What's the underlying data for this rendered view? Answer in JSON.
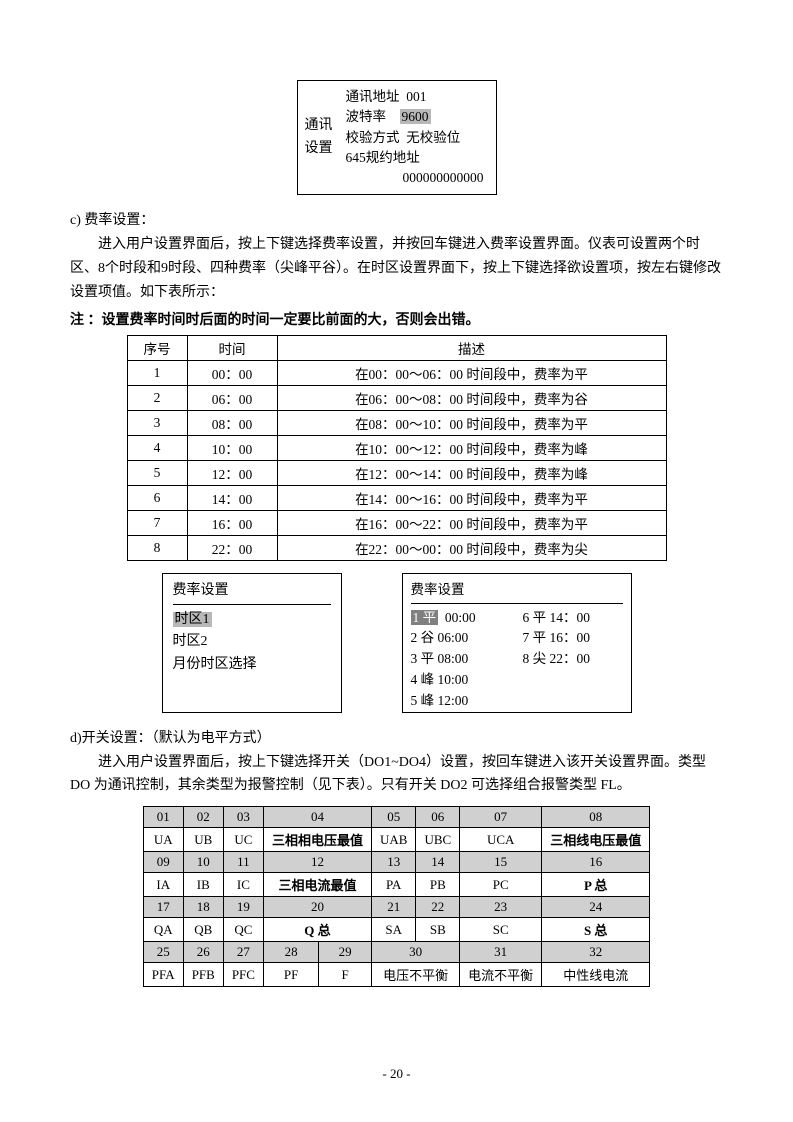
{
  "comm": {
    "left1": "通讯",
    "left2": "设置",
    "addr_lbl": "通讯地址",
    "addr_val": "001",
    "baud_lbl": "波特率",
    "baud_val": "9600",
    "parity_lbl": "校验方式",
    "parity_val": "无校验位",
    "proto_lbl": "645规约地址",
    "proto_val": "000000000000"
  },
  "sec_c": {
    "title": "c) 费率设置：",
    "p1": "进入用户设置界面后，按上下键选择费率设置，并按回车键进入费率设置界面。仪表可设置两个时区、8个时段和9时段、四种费率（尖峰平谷）。在时区设置界面下，按上下键选择欲设置项，按左右键修改设置项值。如下表所示：",
    "note": "注 ：设置费率时间时后面的时间一定要比前面的大，否则会出错。"
  },
  "tariff_head": {
    "c1": "序号",
    "c2": "时间",
    "c3": "描述"
  },
  "tariff_rows": [
    {
      "n": "1",
      "t": "00：00",
      "d": "在00：00～06：00 时间段中，费率为平"
    },
    {
      "n": "2",
      "t": "06：00",
      "d": "在06：00～08：00 时间段中，费率为谷"
    },
    {
      "n": "3",
      "t": "08：00",
      "d": "在08：00～10：00 时间段中，费率为平"
    },
    {
      "n": "4",
      "t": "10：00",
      "d": "在10：00～12：00 时间段中，费率为峰"
    },
    {
      "n": "5",
      "t": "12：00",
      "d": "在12：00～14：00 时间段中，费率为峰"
    },
    {
      "n": "6",
      "t": "14：00",
      "d": "在14：00～16：00 时间段中，费率为平"
    },
    {
      "n": "7",
      "t": "16：00",
      "d": "在16：00～22：00 时间段中，费率为平"
    },
    {
      "n": "8",
      "t": "22：00",
      "d": "在22：00～00：00 时间段中，费率为尖"
    }
  ],
  "lcd_left": {
    "title": "费率设置",
    "i1": "时区1",
    "i2": "时区2",
    "i3": "月份时区选择"
  },
  "lcd_right": {
    "title": "费率设置",
    "rows_left": [
      {
        "n": "1",
        "r": "平",
        "t": "00:00"
      },
      {
        "n": "2",
        "r": "谷",
        "t": "06:00"
      },
      {
        "n": "3",
        "r": "平",
        "t": "08:00"
      },
      {
        "n": "4",
        "r": "峰",
        "t": "10:00"
      },
      {
        "n": "5",
        "r": "峰",
        "t": "12:00"
      }
    ],
    "rows_right": [
      {
        "n": "6",
        "r": "平",
        "t": "14：00"
      },
      {
        "n": "7",
        "r": "平",
        "t": "16：00"
      },
      {
        "n": "8",
        "r": "尖",
        "t": "22：00"
      }
    ]
  },
  "sec_d": {
    "title": "d)开关设置：（默认为电平方式）",
    "p1": "进入用户设置界面后，按上下键选择开关（DO1~DO4）设置，按回车键进入该开关设置界面。类型 DO 为通讯控制，其余类型为报警控制（见下表）。只有开关 DO2 可选择组合报警类型 FL。"
  },
  "grid": {
    "r1": [
      "01",
      "02",
      "03",
      "04",
      "05",
      "06",
      "07",
      "08"
    ],
    "r2": [
      "UA",
      "UB",
      "UC",
      "三相相电压最值",
      "UAB",
      "UBC",
      "UCA",
      "三相线电压最值"
    ],
    "r3": [
      "09",
      "10",
      "11",
      "12",
      "13",
      "14",
      "15",
      "16"
    ],
    "r4": [
      "IA",
      "IB",
      "IC",
      "三相电流最值",
      "PA",
      "PB",
      "PC",
      "P 总"
    ],
    "r5": [
      "17",
      "18",
      "19",
      "20",
      "21",
      "22",
      "23",
      "24"
    ],
    "r6": [
      "QA",
      "QB",
      "QC",
      "Q 总",
      "SA",
      "SB",
      "SC",
      "S 总"
    ],
    "r7": [
      "25",
      "26",
      "27",
      "28",
      "29",
      "30",
      "31",
      "32"
    ],
    "r8": [
      "PFA",
      "PFB",
      "PFC",
      "PF",
      "F",
      "电压不平衡",
      "电流不平衡",
      "中性线电流"
    ]
  },
  "page_num": "- 20 -"
}
